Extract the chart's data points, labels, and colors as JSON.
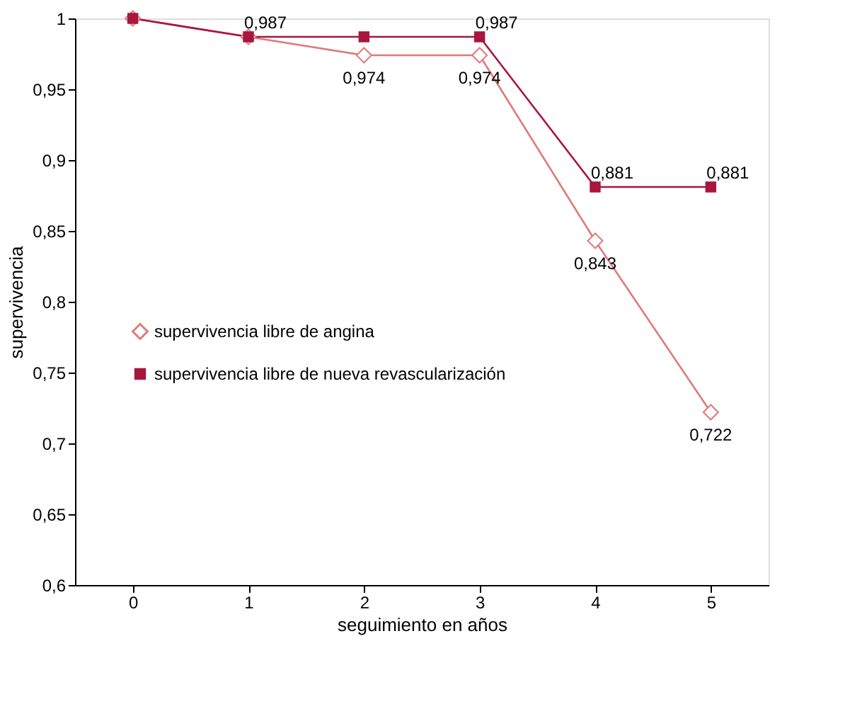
{
  "chart_data": {
    "type": "line",
    "xlabel": "seguimiento en años",
    "ylabel": "supervivencia",
    "categories": [
      "0",
      "1",
      "2",
      "3",
      "4",
      "5"
    ],
    "series": [
      {
        "name": "supervivencia libre de angina",
        "color": "#e07a7a",
        "marker": "diamond",
        "values": [
          1,
          0.987,
          0.974,
          0.974,
          0.843,
          0.722
        ],
        "value_labels": [
          null,
          null,
          "0,974",
          "0,974",
          "0,843",
          "0,722"
        ]
      },
      {
        "name": "supervivencia libre de nueva revascularización",
        "color": "#a8173f",
        "marker": "square",
        "values": [
          1,
          0.987,
          0.987,
          0.987,
          0.881,
          0.881
        ],
        "value_labels": [
          null,
          "0,987",
          null,
          "0,987",
          "0,881",
          "0,881"
        ]
      }
    ],
    "ylim": [
      0.6,
      1
    ],
    "yticks": [
      {
        "value": 0.6,
        "label": "0,6"
      },
      {
        "value": 0.65,
        "label": "0,65"
      },
      {
        "value": 0.7,
        "label": "0,7"
      },
      {
        "value": 0.75,
        "label": "0,75"
      },
      {
        "value": 0.8,
        "label": "0,8"
      },
      {
        "value": 0.85,
        "label": "0,85"
      },
      {
        "value": 0.9,
        "label": "0,9"
      },
      {
        "value": 0.95,
        "label": "0,95"
      },
      {
        "value": 1,
        "label": "1"
      }
    ],
    "grid": false,
    "legend": "left",
    "line_style": "solid"
  }
}
